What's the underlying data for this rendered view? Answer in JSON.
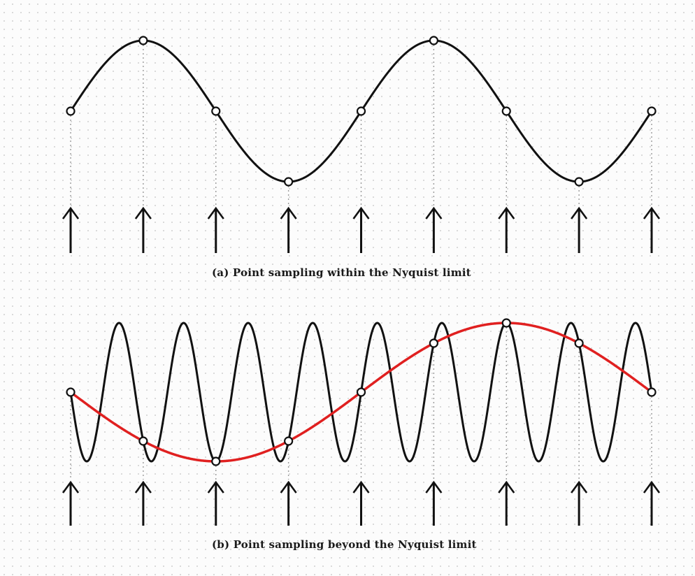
{
  "figure": {
    "panel_a": {
      "caption": "(a) Point sampling within the Nyquist limit",
      "signal": {
        "color": "#111111",
        "cycles_over_span": 2
      },
      "samples": {
        "count": 9,
        "marker": "open-circle"
      },
      "arrows": {
        "count": 9,
        "icon": "up-arrow-icon"
      }
    },
    "panel_b": {
      "caption": "(b) Point sampling beyond the Nyquist limit",
      "signal": {
        "color": "#111111",
        "cycles_over_span": 9
      },
      "alias": {
        "color": "#e02020",
        "cycles_over_span": 1
      },
      "samples": {
        "count": 9,
        "marker": "open-circle"
      },
      "arrows": {
        "count": 9,
        "icon": "up-arrow-icon"
      }
    }
  }
}
